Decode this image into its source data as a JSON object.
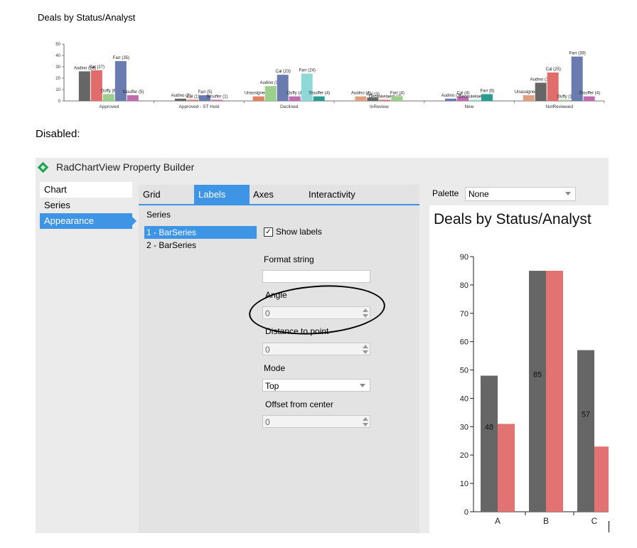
{
  "top_chart": {
    "title": "Deals by Status/Analyst",
    "y_ticks": [
      "50",
      "40",
      "30",
      "20",
      "10",
      "0"
    ],
    "categories": [
      "Approved",
      "Approved - ST Hold",
      "Declined",
      "InReview",
      "New",
      "NotReviewed"
    ],
    "bar_labels": [
      {
        "group": 0,
        "bars": [
          {
            "label": "Audino (26)",
            "value": 26,
            "color": "#666666"
          },
          {
            "label": "Cal (27)",
            "value": 27,
            "color": "#e06c6c"
          },
          {
            "label": "Duffy (6)",
            "value": 6,
            "color": "#9bd08c"
          },
          {
            "label": "Farr (35)",
            "value": 35,
            "color": "#6a7bb0"
          },
          {
            "label": "Stouffer (5)",
            "value": 5,
            "color": "#c06ab0"
          }
        ]
      },
      {
        "group": 1,
        "bars": [
          {
            "label": "Audino (2)",
            "value": 2,
            "color": "#666666"
          },
          {
            "label": "Cal (1)",
            "value": 1,
            "color": "#e06c6c"
          },
          {
            "label": "Farr (5)",
            "value": 5,
            "color": "#6a7bb0"
          },
          {
            "label": "Stouffer (1)",
            "value": 1,
            "color": "#c06ab0"
          }
        ]
      },
      {
        "group": 2,
        "bars": [
          {
            "label": "Unassigned (4)",
            "value": 4,
            "color": "#e08060"
          },
          {
            "label": "Audino (13)",
            "value": 13,
            "color": "#9bd08c"
          },
          {
            "label": "Cal (23)",
            "value": 23,
            "color": "#6a7bb0"
          },
          {
            "label": "Duffy (4)",
            "value": 4,
            "color": "#c06ab0"
          },
          {
            "label": "Farr (24)",
            "value": 24,
            "color": "#8fd8d8"
          },
          {
            "label": "Stouffer (4)",
            "value": 4,
            "color": "#2a9d8f"
          }
        ]
      },
      {
        "group": 3,
        "bars": [
          {
            "label": "Audino (4)",
            "value": 4,
            "color": "#e0a080"
          },
          {
            "label": "Cal (3)",
            "value": 3,
            "color": "#666666"
          },
          {
            "label": "Deceukelaere (1)",
            "value": 1,
            "color": "#e06c6c"
          },
          {
            "label": "Farr (4)",
            "value": 4,
            "color": "#9bd08c"
          }
        ]
      },
      {
        "group": 4,
        "bars": [
          {
            "label": "Audino (2)",
            "value": 2,
            "color": "#6a7bb0"
          },
          {
            "label": "Cal (4)",
            "value": 4,
            "color": "#c06ab0"
          },
          {
            "label": "Deceukelaere (1)",
            "value": 1,
            "color": "#8fd8d8"
          },
          {
            "label": "Farr (6)",
            "value": 6,
            "color": "#2a9d8f"
          }
        ]
      },
      {
        "group": 5,
        "bars": [
          {
            "label": "Unassigned (5)",
            "value": 5,
            "color": "#e0a080"
          },
          {
            "label": "Audino (16)",
            "value": 16,
            "color": "#666666"
          },
          {
            "label": "Cal (25)",
            "value": 25,
            "color": "#e06c6c"
          },
          {
            "label": "Duffy (1)",
            "value": 1,
            "color": "#9bd08c"
          },
          {
            "label": "Farr (39)",
            "value": 39,
            "color": "#6a7bb0"
          },
          {
            "label": "Stouffer (4)",
            "value": 4,
            "color": "#c06ab0"
          }
        ]
      }
    ],
    "ylim": [
      0,
      50
    ]
  },
  "disabled_label": "Disabled:",
  "builder": {
    "title": "RadChartView Property Builder",
    "nav": [
      "Chart",
      "Series",
      "Appearance"
    ],
    "nav_active": 2,
    "tabs": [
      "Grid",
      "Labels",
      "Axes",
      "Interactivity"
    ],
    "tab_active": 1,
    "series_heading": "Series",
    "series": [
      "1 - BarSeries",
      "2 - BarSeries"
    ],
    "show_labels": "Show labels",
    "format_string_label": "Format string",
    "format_string_value": "",
    "angle_label": "Angle",
    "angle_value": "0",
    "distance_label": "Distance to point",
    "distance_value": "0",
    "mode_label": "Mode",
    "mode_value": "Top",
    "offset_label": "Offset from center",
    "offset_value": "0",
    "palette_label": "Palette",
    "palette_value": "None"
  },
  "chart_data": {
    "type": "bar",
    "title": "Deals by Status/Analyst",
    "categories": [
      "A",
      "B",
      "C"
    ],
    "series": [
      {
        "values": [
          48,
          85,
          57
        ],
        "color": "#666666",
        "data_labels": [
          "48",
          "85",
          "57"
        ]
      },
      {
        "values": [
          31,
          85,
          23
        ],
        "color": "#e37373"
      }
    ],
    "ylim": [
      0,
      90
    ],
    "y_ticks": [
      "0",
      "10",
      "20",
      "30",
      "40",
      "50",
      "60",
      "70",
      "80",
      "90"
    ]
  }
}
